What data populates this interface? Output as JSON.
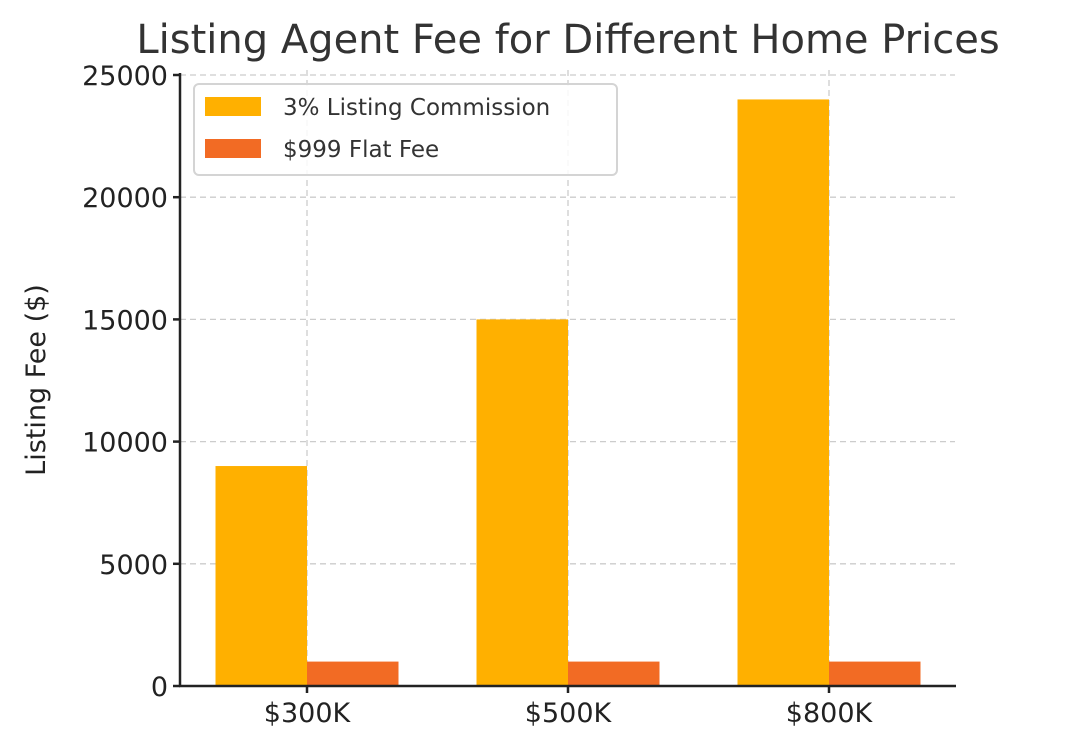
{
  "chart_data": {
    "type": "bar",
    "title": "Listing Agent Fee for Different Home Prices",
    "xlabel": "",
    "ylabel": "Listing Fee ($)",
    "categories": [
      "$300K",
      "$500K",
      "$800K"
    ],
    "series": [
      {
        "name": "3% Listing Commission",
        "color": "#FFB000",
        "values": [
          9000,
          15000,
          24000
        ]
      },
      {
        "name": "$999 Flat Fee",
        "color": "#F26B24",
        "values": [
          999,
          999,
          999
        ]
      }
    ],
    "ylim": [
      0,
      25000
    ],
    "yticks": [
      0,
      5000,
      10000,
      15000,
      20000,
      25000
    ],
    "grid": true,
    "legend_position": "upper left"
  }
}
